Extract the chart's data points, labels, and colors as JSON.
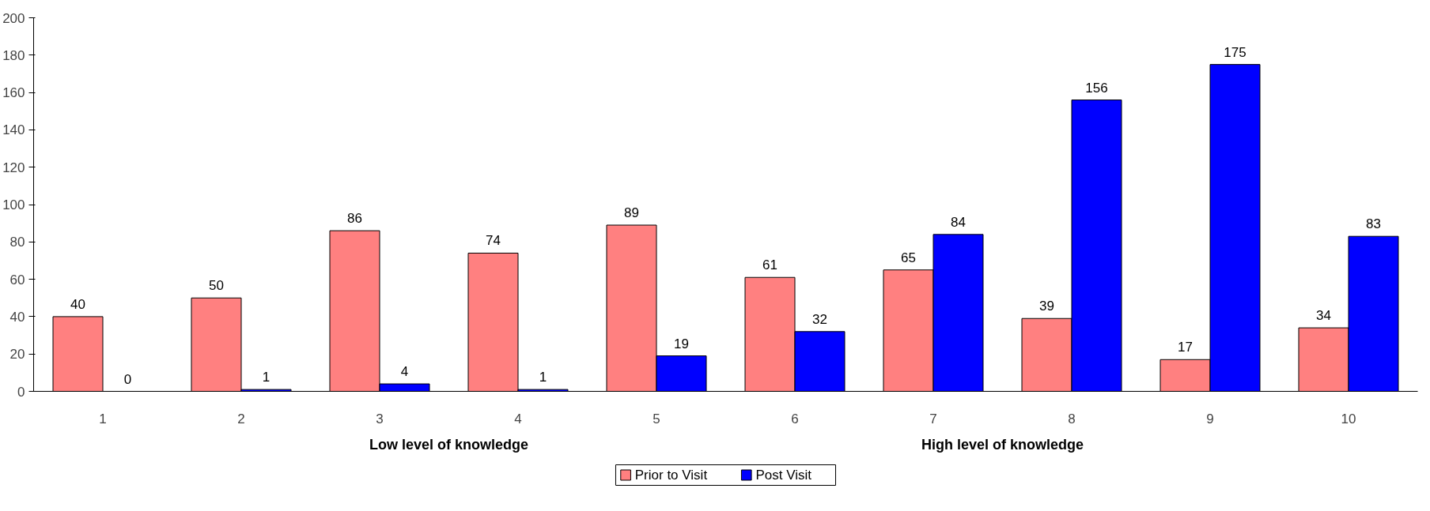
{
  "chart_data": {
    "type": "bar",
    "categories": [
      "1",
      "2",
      "3",
      "4",
      "5",
      "6",
      "7",
      "8",
      "9",
      "10"
    ],
    "series": [
      {
        "name": "Prior to Visit",
        "color": "#ff8080",
        "values": [
          40,
          50,
          86,
          74,
          89,
          61,
          65,
          39,
          17,
          34
        ]
      },
      {
        "name": "Post Visit",
        "color": "#0000ff",
        "values": [
          0,
          1,
          4,
          1,
          19,
          32,
          84,
          156,
          175,
          83
        ]
      }
    ],
    "ylim": [
      0,
      200
    ],
    "yticks": [
      0,
      20,
      40,
      60,
      80,
      100,
      120,
      140,
      160,
      180,
      200
    ],
    "annotations": [
      "Low level of knowledge",
      "High level of knowledge"
    ],
    "data_labels": true,
    "legend": "bottom",
    "grid": false
  }
}
